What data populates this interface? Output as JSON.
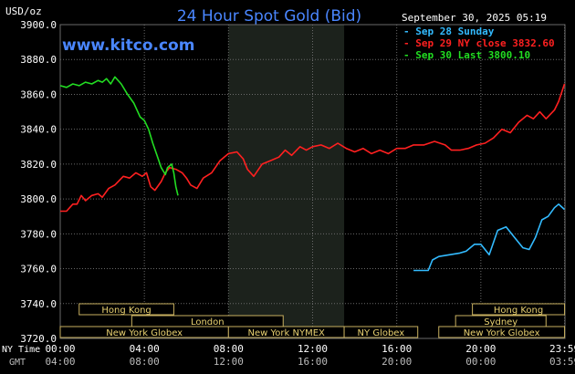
{
  "header": {
    "title": "24 Hour Spot Gold (Bid)",
    "unit_label": "USD/oz",
    "date_label": "September 30, 2025 05:19",
    "watermark": "www.kitco.com"
  },
  "legend": [
    {
      "label": "Sep 28 Sunday",
      "color": "#33bbff"
    },
    {
      "label": "Sep 29 NY close 3832.60",
      "color": "#ff2020"
    },
    {
      "label": "Sep 30 Last 3800.10",
      "color": "#22dd22"
    }
  ],
  "colors": {
    "background": "#000000",
    "grid": "#6a6a6a",
    "axis_text": "#ffffff",
    "title": "#4a86ff",
    "market_box_bg": "#000000",
    "market_box_border": "#c8b060",
    "market_box_text": "#e8d070",
    "nymex_shade": "#1c221c"
  },
  "time_axis": {
    "row1_label": "NY Time",
    "row2_label": "GMT",
    "row1_ticks": [
      {
        "h": 0,
        "label": "00:00"
      },
      {
        "h": 4,
        "label": "04:00"
      },
      {
        "h": 8,
        "label": "08:00"
      },
      {
        "h": 12,
        "label": "12:00"
      },
      {
        "h": 16,
        "label": "16:00"
      },
      {
        "h": 20,
        "label": "20:00"
      },
      {
        "h": 23.98,
        "label": "23:59"
      }
    ],
    "row2_ticks": [
      {
        "h": 0,
        "label": "04:00"
      },
      {
        "h": 4,
        "label": "08:00"
      },
      {
        "h": 8,
        "label": "12:00"
      },
      {
        "h": 12,
        "label": "16:00"
      },
      {
        "h": 16,
        "label": "20:00"
      },
      {
        "h": 20,
        "label": "00:00"
      },
      {
        "h": 23.98,
        "label": "03:59"
      }
    ]
  },
  "markets": [
    {
      "label": "Hong Kong",
      "start": 0.9,
      "end": 5.4,
      "row": 0
    },
    {
      "label": "London",
      "start": 3.4,
      "end": 10.6,
      "row": 1
    },
    {
      "label": "New York Globex",
      "start": 0.0,
      "end": 8.0,
      "row": 2
    },
    {
      "label": "New York NYMEX",
      "start": 8.0,
      "end": 13.5,
      "row": 2
    },
    {
      "label": "NY Globex",
      "start": 13.5,
      "end": 17.0,
      "row": 2
    },
    {
      "label": "Hong Kong",
      "start": 19.6,
      "end": 23.98,
      "row": 0
    },
    {
      "label": "Sydney",
      "start": 18.8,
      "end": 23.1,
      "row": 1
    },
    {
      "label": "New York Globex",
      "start": 18.0,
      "end": 23.98,
      "row": 2
    }
  ],
  "chart_data": {
    "type": "line",
    "title": "24 Hour Spot Gold (Bid)",
    "ylabel": "USD/oz",
    "xlim": [
      0,
      24
    ],
    "ylim": [
      3720,
      3900
    ],
    "yticks": [
      3720,
      3740,
      3760,
      3780,
      3800,
      3820,
      3840,
      3860,
      3880,
      3900
    ],
    "ytick_labels": [
      "3720.0",
      "3740.0",
      "3760.0",
      "3780.0",
      "3800.0",
      "3820.0",
      "3840.0",
      "3860.0",
      "3880.0",
      "3900.0"
    ],
    "shaded_session_hours": [
      8.0,
      13.5
    ],
    "grid": true,
    "legend_position": "top-right",
    "series": [
      {
        "name": "Sep 28 Sunday",
        "color": "#33bbff",
        "points": [
          [
            16.8,
            3759
          ],
          [
            17.5,
            3759
          ],
          [
            17.7,
            3765
          ],
          [
            18.0,
            3767
          ],
          [
            18.5,
            3768
          ],
          [
            19.0,
            3769
          ],
          [
            19.3,
            3770
          ],
          [
            19.7,
            3774
          ],
          [
            20.0,
            3774
          ],
          [
            20.4,
            3768
          ],
          [
            20.8,
            3782
          ],
          [
            21.2,
            3784
          ],
          [
            21.6,
            3778
          ],
          [
            22.0,
            3772
          ],
          [
            22.3,
            3771
          ],
          [
            22.6,
            3778
          ],
          [
            22.9,
            3788
          ],
          [
            23.2,
            3790
          ],
          [
            23.5,
            3795
          ],
          [
            23.7,
            3797
          ],
          [
            23.98,
            3794
          ]
        ]
      },
      {
        "name": "Sep 29 NY close 3832.60",
        "color": "#ff2020",
        "points": [
          [
            0.0,
            3793
          ],
          [
            0.3,
            3793
          ],
          [
            0.6,
            3797
          ],
          [
            0.8,
            3797
          ],
          [
            1.0,
            3802
          ],
          [
            1.2,
            3799
          ],
          [
            1.5,
            3802
          ],
          [
            1.8,
            3803
          ],
          [
            2.0,
            3801
          ],
          [
            2.3,
            3806
          ],
          [
            2.6,
            3808
          ],
          [
            3.0,
            3813
          ],
          [
            3.3,
            3812
          ],
          [
            3.6,
            3815
          ],
          [
            3.9,
            3813
          ],
          [
            4.1,
            3815
          ],
          [
            4.3,
            3807
          ],
          [
            4.5,
            3805
          ],
          [
            4.8,
            3810
          ],
          [
            5.0,
            3815
          ],
          [
            5.2,
            3818
          ],
          [
            5.5,
            3817
          ],
          [
            5.8,
            3815
          ],
          [
            6.0,
            3812
          ],
          [
            6.2,
            3808
          ],
          [
            6.5,
            3806
          ],
          [
            6.8,
            3812
          ],
          [
            7.2,
            3815
          ],
          [
            7.6,
            3822
          ],
          [
            8.0,
            3826
          ],
          [
            8.4,
            3827
          ],
          [
            8.7,
            3823
          ],
          [
            8.9,
            3817
          ],
          [
            9.2,
            3813
          ],
          [
            9.6,
            3820
          ],
          [
            10.0,
            3822
          ],
          [
            10.4,
            3824
          ],
          [
            10.7,
            3828
          ],
          [
            11.0,
            3825
          ],
          [
            11.4,
            3830
          ],
          [
            11.7,
            3828
          ],
          [
            12.0,
            3830
          ],
          [
            12.4,
            3831
          ],
          [
            12.8,
            3829
          ],
          [
            13.2,
            3832
          ],
          [
            13.6,
            3829
          ],
          [
            14.0,
            3827
          ],
          [
            14.4,
            3829
          ],
          [
            14.8,
            3826
          ],
          [
            15.2,
            3828
          ],
          [
            15.6,
            3826
          ],
          [
            16.0,
            3829
          ],
          [
            16.4,
            3829
          ],
          [
            16.8,
            3831
          ],
          [
            17.3,
            3831
          ],
          [
            17.8,
            3833
          ],
          [
            18.3,
            3831
          ],
          [
            18.6,
            3828
          ],
          [
            19.0,
            3828
          ],
          [
            19.4,
            3829
          ],
          [
            19.8,
            3831
          ],
          [
            20.2,
            3832
          ],
          [
            20.6,
            3835
          ],
          [
            21.0,
            3840
          ],
          [
            21.4,
            3838
          ],
          [
            21.8,
            3844
          ],
          [
            22.2,
            3848
          ],
          [
            22.5,
            3846
          ],
          [
            22.8,
            3850
          ],
          [
            23.1,
            3846
          ],
          [
            23.5,
            3851
          ],
          [
            23.7,
            3856
          ],
          [
            23.98,
            3866
          ]
        ]
      },
      {
        "name": "Sep 30 Last 3800.10",
        "color": "#22dd22",
        "points": [
          [
            0.0,
            3865
          ],
          [
            0.3,
            3864
          ],
          [
            0.6,
            3866
          ],
          [
            0.9,
            3865
          ],
          [
            1.2,
            3867
          ],
          [
            1.5,
            3866
          ],
          [
            1.8,
            3868
          ],
          [
            2.0,
            3867
          ],
          [
            2.2,
            3869
          ],
          [
            2.4,
            3866
          ],
          [
            2.6,
            3870
          ],
          [
            2.9,
            3866
          ],
          [
            3.2,
            3860
          ],
          [
            3.5,
            3855
          ],
          [
            3.8,
            3847
          ],
          [
            4.0,
            3845
          ],
          [
            4.2,
            3840
          ],
          [
            4.4,
            3832
          ],
          [
            4.6,
            3825
          ],
          [
            4.8,
            3818
          ],
          [
            5.0,
            3814
          ],
          [
            5.1,
            3818
          ],
          [
            5.3,
            3820
          ],
          [
            5.4,
            3815
          ],
          [
            5.5,
            3807
          ],
          [
            5.6,
            3802
          ]
        ]
      }
    ]
  }
}
